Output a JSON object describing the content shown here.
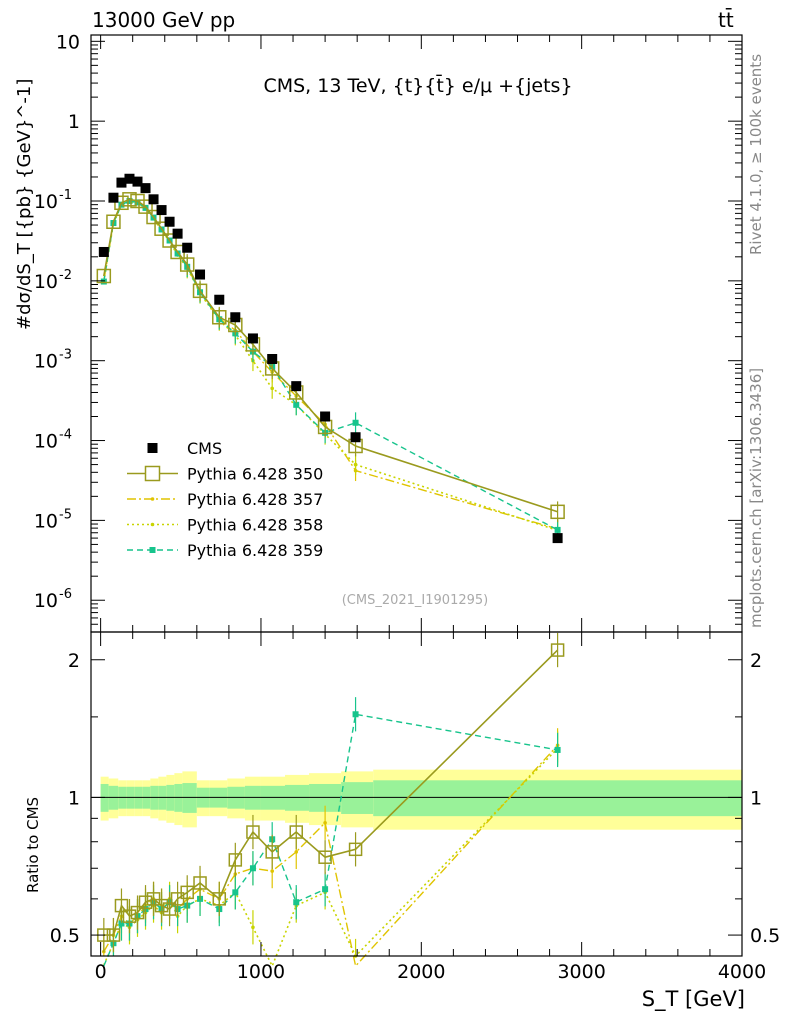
{
  "header": {
    "energy": "13000 GeV pp",
    "process": "tt̄",
    "title": "CMS, 13 TeV, {t}{t̄} e/μ +{jets}",
    "analysis_id": "(CMS_2021_I1901295)",
    "side_right_top": "Rivet 4.1.0, ≥ 100k events",
    "side_right_bottom": "mcplots.cern.ch [arXiv:1306.3436]"
  },
  "axes": {
    "main_ylabel": "#dσ/dS_T [{pb} {GeV}^-1]",
    "ratio_ylabel": "Ratio to CMS",
    "xlabel": "S_T [GeV]",
    "x_ticks": [
      "0",
      "1000",
      "2000",
      "3000",
      "4000"
    ],
    "y_ticks_main": [
      "10^-6",
      "10^-5",
      "10^-4",
      "10^-3",
      "10^-2",
      "10^-1",
      "1",
      "10"
    ],
    "y_ticks_ratio": [
      "0.5",
      "1",
      "2"
    ]
  },
  "legend": {
    "items": [
      {
        "label": "CMS",
        "color": "#000000",
        "key": "cms"
      },
      {
        "label": "Pythia 6.428 350",
        "color": "#9a9a1e",
        "key": "p350"
      },
      {
        "label": "Pythia 6.428 357",
        "color": "#e0c400",
        "key": "p357"
      },
      {
        "label": "Pythia 6.428 358",
        "color": "#c8d400",
        "key": "p358"
      },
      {
        "label": "Pythia 6.428 359",
        "color": "#17c48c",
        "key": "p359"
      }
    ]
  },
  "chart_data": {
    "type": "scatter",
    "xlabel": "S_T [GeV]",
    "ylabel": "dσ/dS_T [pb GeV^-1]",
    "xlim": [
      -60,
      4000
    ],
    "ylim_main": [
      4e-07,
      12
    ],
    "ylim_ratio": [
      0.45,
      2.3
    ],
    "yscale_main": "log",
    "yscale_ratio": "log",
    "x": [
      20,
      80,
      130,
      180,
      230,
      280,
      330,
      380,
      430,
      480,
      540,
      620,
      740,
      840,
      950,
      1070,
      1220,
      1400,
      1590,
      2850
    ],
    "series": [
      {
        "name": "CMS",
        "key": "cms",
        "values": [
          0.023,
          0.11,
          0.17,
          0.19,
          0.175,
          0.145,
          0.105,
          0.077,
          0.055,
          0.039,
          0.026,
          0.012,
          0.0058,
          0.0035,
          0.0019,
          0.00105,
          0.00048,
          0.0002,
          0.00011,
          6e-06
        ]
      },
      {
        "name": "Pythia 6.428 350",
        "key": "p350",
        "values": [
          0.0115,
          0.055,
          0.095,
          0.105,
          0.1,
          0.085,
          0.063,
          0.045,
          0.032,
          0.023,
          0.016,
          0.0075,
          0.0035,
          0.0028,
          0.0016,
          0.0008,
          0.0004,
          0.000148,
          8.55e-05,
          1.28e-05
        ]
      },
      {
        "name": "Pythia 6.428 357",
        "key": "p357",
        "values": [
          0.01,
          0.053,
          0.093,
          0.1,
          0.097,
          0.083,
          0.062,
          0.044,
          0.032,
          0.022,
          0.015,
          0.0072,
          0.0034,
          0.0024,
          0.0013,
          0.00072,
          0.00036,
          0.00016,
          4.2e-05,
          7.8e-06
        ]
      },
      {
        "name": "Pythia 6.428 358",
        "key": "p358",
        "values": [
          0.0098,
          0.052,
          0.09,
          0.098,
          0.095,
          0.081,
          0.06,
          0.043,
          0.031,
          0.021,
          0.0145,
          0.007,
          0.0032,
          0.0021,
          0.001,
          0.00045,
          0.00028,
          0.00012,
          5e-05,
          7.5e-06
        ]
      },
      {
        "name": "Pythia 6.428 359",
        "key": "p359",
        "values": [
          0.0098,
          0.053,
          0.09,
          0.1,
          0.096,
          0.082,
          0.062,
          0.044,
          0.032,
          0.022,
          0.015,
          0.0072,
          0.0033,
          0.0022,
          0.0013,
          0.00085,
          0.00028,
          0.000125,
          0.000167,
          7.6e-06
        ]
      }
    ],
    "ratio": {
      "band_x_edges": [
        0,
        50,
        110,
        160,
        210,
        260,
        310,
        360,
        410,
        460,
        510,
        600,
        680,
        790,
        900,
        1000,
        1150,
        1300,
        1500,
        1700,
        4000
      ],
      "inner_half_width": [
        0.07,
        0.06,
        0.055,
        0.055,
        0.055,
        0.055,
        0.06,
        0.06,
        0.065,
        0.07,
        0.075,
        0.05,
        0.05,
        0.055,
        0.06,
        0.06,
        0.065,
        0.07,
        0.08,
        0.09
      ],
      "outer_half_width": [
        0.11,
        0.1,
        0.09,
        0.09,
        0.09,
        0.09,
        0.1,
        0.11,
        0.12,
        0.13,
        0.14,
        0.09,
        0.09,
        0.1,
        0.11,
        0.11,
        0.12,
        0.13,
        0.14,
        0.15
      ],
      "series": [
        {
          "key": "p350",
          "values": [
            0.5,
            0.5,
            0.58,
            0.55,
            0.56,
            0.59,
            0.6,
            0.58,
            0.57,
            0.6,
            0.62,
            0.65,
            0.6,
            0.73,
            0.84,
            0.76,
            0.84,
            0.74,
            0.77,
            2.1
          ]
        },
        {
          "key": "p357",
          "values": [
            0.46,
            0.5,
            0.55,
            0.53,
            0.55,
            0.58,
            0.6,
            0.58,
            0.59,
            0.57,
            0.6,
            0.63,
            0.6,
            0.68,
            0.7,
            0.69,
            0.76,
            0.88,
            0.4,
            1.3
          ]
        },
        {
          "key": "p358",
          "values": [
            0.43,
            0.48,
            0.53,
            0.52,
            0.54,
            0.56,
            0.58,
            0.56,
            0.6,
            0.55,
            0.58,
            0.6,
            0.58,
            0.62,
            0.52,
            0.42,
            0.58,
            0.62,
            0.45,
            1.28
          ]
        },
        {
          "key": "p359",
          "values": [
            0.42,
            0.48,
            0.53,
            0.53,
            0.55,
            0.57,
            0.59,
            0.57,
            0.59,
            0.57,
            0.58,
            0.6,
            0.57,
            0.62,
            0.7,
            0.81,
            0.59,
            0.63,
            1.52,
            1.27
          ]
        }
      ]
    }
  }
}
